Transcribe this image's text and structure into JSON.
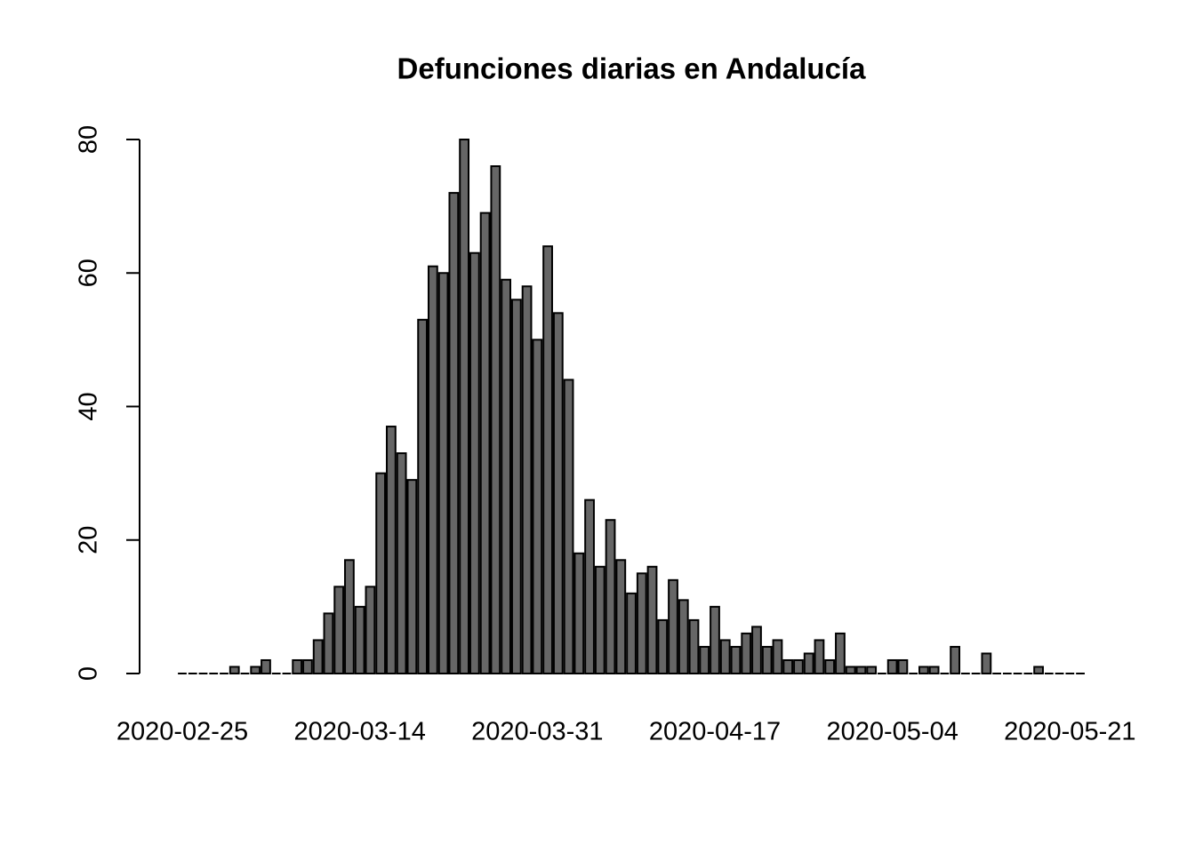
{
  "chart_data": {
    "type": "bar",
    "title": "Defunciones diarias en Andalucía",
    "categories": [
      "2020-02-25",
      null,
      null,
      null,
      null,
      null,
      null,
      null,
      null,
      null,
      null,
      null,
      null,
      null,
      null,
      null,
      null,
      "2020-03-14",
      null,
      null,
      null,
      null,
      null,
      null,
      null,
      null,
      null,
      null,
      null,
      null,
      null,
      null,
      null,
      null,
      "2020-03-31",
      null,
      null,
      null,
      null,
      null,
      null,
      null,
      null,
      null,
      null,
      null,
      null,
      null,
      null,
      null,
      null,
      "2020-04-17",
      null,
      null,
      null,
      null,
      null,
      null,
      null,
      null,
      null,
      null,
      null,
      null,
      null,
      null,
      null,
      null,
      "2020-05-04",
      null,
      null,
      null,
      null,
      null,
      null,
      null,
      null,
      null,
      null,
      null,
      null,
      null,
      null,
      null,
      null,
      "2020-05-21",
      null
    ],
    "values": [
      0,
      0,
      0,
      0,
      0,
      1,
      0,
      1,
      2,
      0,
      0,
      2,
      2,
      5,
      9,
      13,
      17,
      10,
      13,
      30,
      37,
      33,
      29,
      53,
      61,
      60,
      72,
      80,
      63,
      69,
      76,
      59,
      56,
      58,
      50,
      64,
      54,
      44,
      18,
      26,
      16,
      23,
      17,
      12,
      15,
      16,
      8,
      14,
      11,
      8,
      4,
      10,
      5,
      4,
      6,
      7,
      4,
      5,
      2,
      2,
      3,
      5,
      2,
      6,
      1,
      1,
      1,
      0,
      2,
      2,
      0,
      1,
      1,
      0,
      4,
      0,
      0,
      3,
      0,
      0,
      0,
      0,
      1,
      0,
      0,
      0,
      0
    ],
    "color": "#666666",
    "ylim": [
      0,
      80
    ],
    "yticks": [
      0,
      20,
      40,
      60,
      80
    ]
  }
}
